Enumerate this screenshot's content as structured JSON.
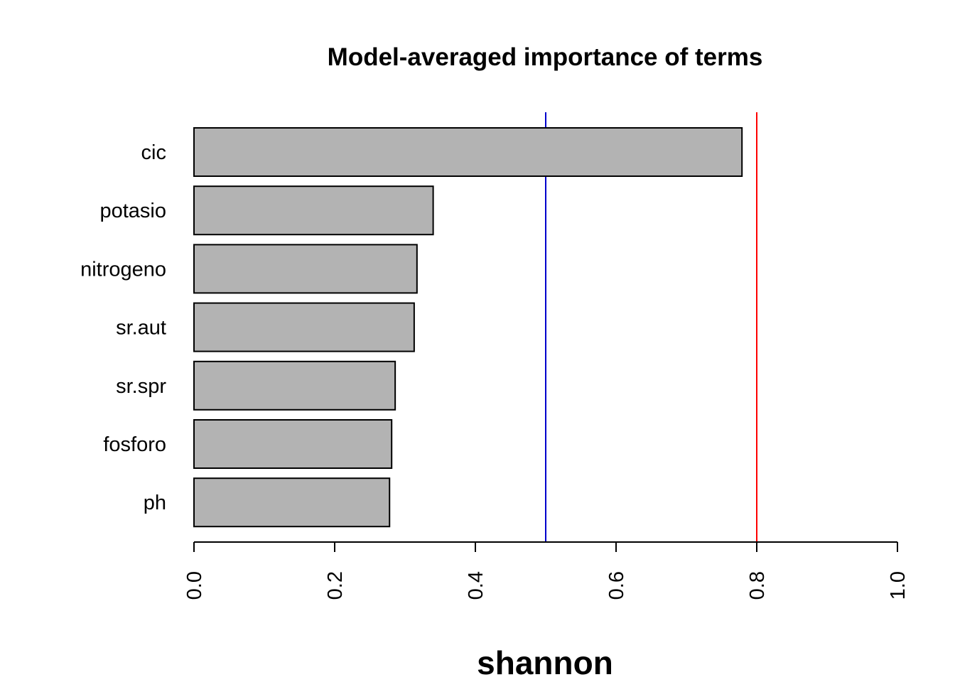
{
  "chart_data": {
    "type": "bar",
    "orientation": "horizontal",
    "title": "Model-averaged importance of terms",
    "xlabel": "shannon",
    "ylabel": "",
    "categories": [
      "cic",
      "potasio",
      "nitrogeno",
      "sr.aut",
      "sr.spr",
      "fosforo",
      "ph"
    ],
    "values": [
      0.779,
      0.34,
      0.317,
      0.313,
      0.286,
      0.281,
      0.278
    ],
    "xlim": [
      0,
      1
    ],
    "xticks": [
      "0.0",
      "0.2",
      "0.4",
      "0.6",
      "0.8",
      "1.0"
    ],
    "tick_values": [
      0,
      0.2,
      0.4,
      0.6,
      0.8,
      1.0
    ],
    "reference_lines": [
      {
        "value": 0.5,
        "color": "#0000cc"
      },
      {
        "value": 0.8,
        "color": "#ff0000"
      }
    ],
    "bar_color": "#b3b3b3",
    "bar_border": "#000000",
    "grid": false,
    "legend": "none"
  }
}
